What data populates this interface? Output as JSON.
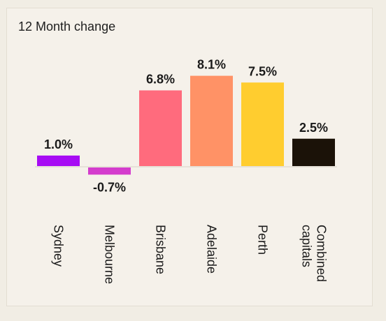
{
  "chart_data": {
    "type": "bar",
    "title": "12 Month change",
    "categories": [
      "Sydney",
      "Melbourne",
      "Brisbane",
      "Adelaide",
      "Perth",
      "Combined capitals"
    ],
    "values": [
      1.0,
      -0.7,
      6.8,
      8.1,
      7.5,
      2.5
    ],
    "value_labels": [
      "1.0%",
      "-0.7%",
      "6.8%",
      "8.1%",
      "7.5%",
      "2.5%"
    ],
    "colors": [
      "#a70cf4",
      "#d43ccd",
      "#ff6b7d",
      "#ff9266",
      "#ffcd2f",
      "#1b1208"
    ],
    "grid": false,
    "legend": "none"
  }
}
